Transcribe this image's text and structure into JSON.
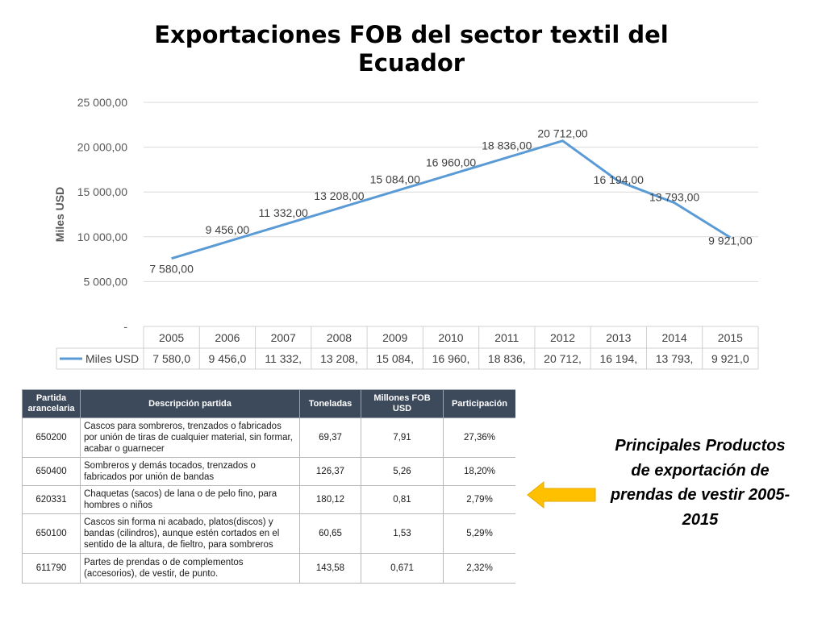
{
  "slide": {
    "title": "Exportaciones FOB del sector textil del Ecuador",
    "side_caption": "Principales Productos de exportación de prendas de vestir 2005-2015"
  },
  "colors": {
    "series_line": "#5b9bd5",
    "table_header": "#3d4a5c",
    "arrow": "#ffc000"
  },
  "icons": {
    "arrow": "left-arrow-icon"
  },
  "chart_data": {
    "type": "line",
    "title": "",
    "xlabel": "",
    "ylabel": "Miles USD",
    "ylim": [
      0,
      25000
    ],
    "y_ticks": [
      "-",
      "5 000,00",
      "10 000,00",
      "15 000,00",
      "20 000,00",
      "25 000,00"
    ],
    "grid": true,
    "categories": [
      "2005",
      "2006",
      "2007",
      "2008",
      "2009",
      "2010",
      "2011",
      "2012",
      "2013",
      "2014",
      "2015"
    ],
    "series": [
      {
        "name": "Miles USD",
        "values": [
          7580,
          9456,
          11332,
          13208,
          15084,
          16960,
          18836,
          20712,
          16194,
          13793,
          9921
        ],
        "data_labels": [
          "7 580,00",
          "9 456,00",
          "11 332,00",
          "13 208,00",
          "15 084,00",
          "16 960,00",
          "18 836,00",
          "20 712,00",
          "16 194,00",
          "13 793,00",
          "9 921,00"
        ]
      }
    ],
    "data_table": {
      "row_label": "Miles USD",
      "cells": [
        "7 580,0",
        "9 456,0",
        "11 332,",
        "13 208,",
        "15 084,",
        "16 960,",
        "18 836,",
        "20 712,",
        "16 194,",
        "13 793,",
        "9 921,0"
      ]
    }
  },
  "products_table": {
    "headers": [
      "Partida arancelaria",
      "Descripción partida",
      "Toneladas",
      "Millones FOB USD",
      "Participación"
    ],
    "rows": [
      [
        "650200",
        "Cascos para sombreros, trenzados o fabricados por unión de tiras de cualquier material, sin formar, acabar o guarnecer",
        "69,37",
        "7,91",
        "27,36%"
      ],
      [
        "650400",
        "Sombreros y demás tocados, trenzados o fabricados por unión de bandas",
        "126,37",
        "5,26",
        "18,20%"
      ],
      [
        "620331",
        "Chaquetas (sacos) de lana o de pelo fino, para hombres o niños",
        "180,12",
        "0,81",
        "2,79%"
      ],
      [
        "650100",
        "Cascos sin forma ni acabado, platos(discos) y bandas (cilindros), aunque estén cortados en el sentido de la altura, de fieltro, para sombreros",
        "60,65",
        "1,53",
        "5,29%"
      ],
      [
        "611790",
        "Partes de prendas o de complementos (accesorios), de vestir, de punto.",
        "143,58",
        "0,671",
        "2,32%"
      ]
    ]
  }
}
